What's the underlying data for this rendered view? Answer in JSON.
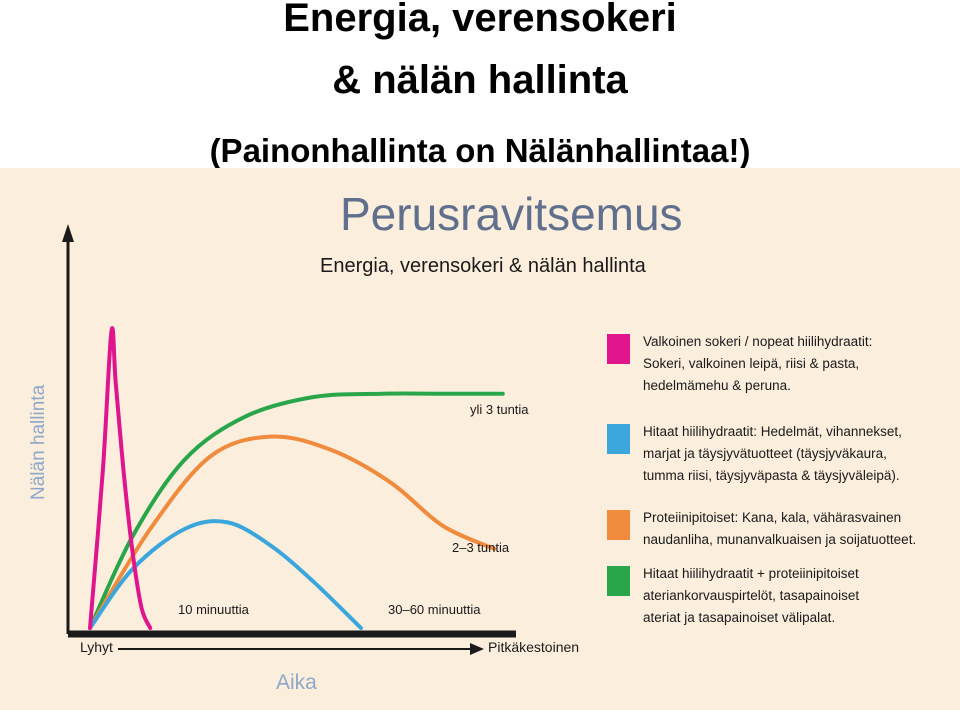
{
  "slide": {
    "title_line1": "Energia, verensokeri",
    "title_line2": "& nälän hallinta",
    "subtitle": "(Painonhallinta on Nälänhallintaa!)"
  },
  "chart_data": {
    "type": "line",
    "heading": "Perusravitsemus",
    "title": "Energia, verensokeri & nälän hallinta",
    "ylabel": "Nälän hallinta",
    "xlabel": "Aika",
    "x_start_label": "Lyhyt",
    "x_end_label": "Pitkäkestoinen",
    "xlim": [
      0,
      100
    ],
    "ylim": [
      0,
      100
    ],
    "grid": false,
    "legend_position": "right",
    "series": [
      {
        "key": "pink",
        "color": "#e0148c",
        "duration_label": "10 minuuttia",
        "legend": [
          "Valkoinen sokeri / nopeat hiilihydraatit:",
          "Sokeri, valkoinen leipä, riisi & pasta,",
          "hedelmämehu & peruna."
        ],
        "points": [
          [
            0,
            0
          ],
          [
            3,
            48
          ],
          [
            5,
            90
          ],
          [
            6,
            74
          ],
          [
            8,
            45
          ],
          [
            10,
            22
          ],
          [
            12,
            6
          ],
          [
            14,
            0
          ]
        ]
      },
      {
        "key": "blue",
        "color": "#3aa6dc",
        "duration_label": "30–60 minuuttia",
        "legend": [
          "Hitaat hiilihydraatit: Hedelmät, vihannekset,",
          "marjat ja täysjyvätuotteet (täysjyväkaura,",
          "tumma riisi, täysjyväpasta & täysjyväleipä)."
        ],
        "points": [
          [
            0,
            0
          ],
          [
            10,
            18
          ],
          [
            22,
            30
          ],
          [
            32,
            32
          ],
          [
            42,
            25
          ],
          [
            52,
            14
          ],
          [
            63,
            0
          ]
        ]
      },
      {
        "key": "orange",
        "color": "#f08a3c",
        "duration_label": "2–3 tuntia",
        "legend": [
          "Proteiinipitoiset: Kana, kala, vähärasvainen",
          "naudanliha, munanvalkuaisen ja soijatuotteet."
        ],
        "points": [
          [
            0,
            0
          ],
          [
            14,
            30
          ],
          [
            28,
            52
          ],
          [
            42,
            58
          ],
          [
            56,
            54
          ],
          [
            70,
            44
          ],
          [
            82,
            31
          ],
          [
            94,
            24
          ]
        ]
      },
      {
        "key": "green",
        "color": "#2aa64a",
        "duration_label": "yli 3 tuntia",
        "legend": [
          "Hitaat hiilihydraatit + proteiinipitoiset",
          "ateriankorvauspirtelöt, tasapainoiset",
          "ateriat ja tasapainoiset välipalat."
        ],
        "points": [
          [
            0,
            0
          ],
          [
            10,
            28
          ],
          [
            22,
            51
          ],
          [
            36,
            64
          ],
          [
            52,
            70
          ],
          [
            68,
            71
          ],
          [
            82,
            71
          ],
          [
            96,
            71
          ]
        ]
      }
    ]
  }
}
